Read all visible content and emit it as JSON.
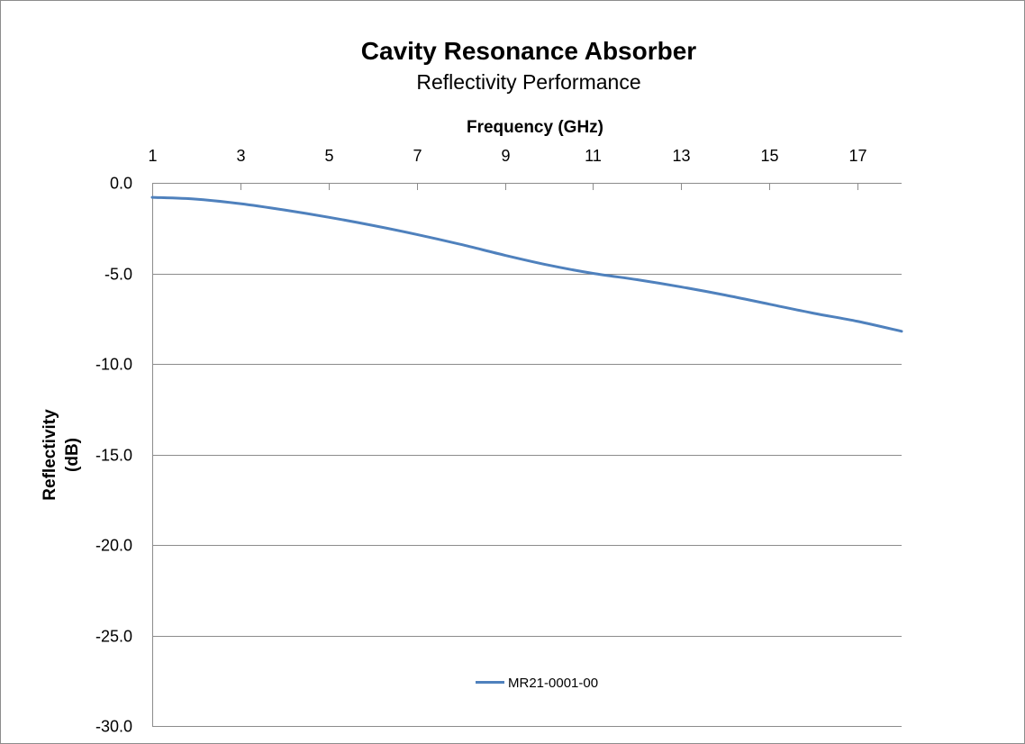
{
  "chart_data": {
    "type": "line",
    "title": "Cavity Resonance Absorber",
    "subtitle": "Reflectivity Performance",
    "xlabel": "Frequency (GHz)",
    "ylabel_lines": [
      "Reflectivity",
      "(dB)"
    ],
    "x_axis_position": "top",
    "xlim": [
      1,
      18
    ],
    "ylim": [
      -30,
      0
    ],
    "x_ticks": [
      1,
      3,
      5,
      7,
      9,
      11,
      13,
      15,
      17
    ],
    "x_tick_labels": [
      "1",
      "3",
      "5",
      "7",
      "9",
      "11",
      "13",
      "15",
      "17"
    ],
    "y_ticks": [
      0,
      -5,
      -10,
      -15,
      -20,
      -25,
      -30
    ],
    "y_tick_labels": [
      "0.0",
      "-5.0",
      "-10.0",
      "-15.0",
      "-20.0",
      "-25.0",
      "-30.0"
    ],
    "grid": "horizontal",
    "legend_position": "bottom",
    "series": [
      {
        "name": "MR21-0001-00",
        "color": "#4F81BD",
        "x": [
          1,
          2,
          3,
          4,
          5,
          6,
          7,
          8,
          9,
          10,
          11,
          12,
          13,
          14,
          15,
          16,
          17,
          18
        ],
        "values": [
          -0.8,
          -0.9,
          -1.15,
          -1.5,
          -1.9,
          -2.35,
          -2.85,
          -3.4,
          -4.0,
          -4.55,
          -5.0,
          -5.35,
          -5.75,
          -6.2,
          -6.7,
          -7.2,
          -7.65,
          -8.2
        ]
      }
    ]
  }
}
